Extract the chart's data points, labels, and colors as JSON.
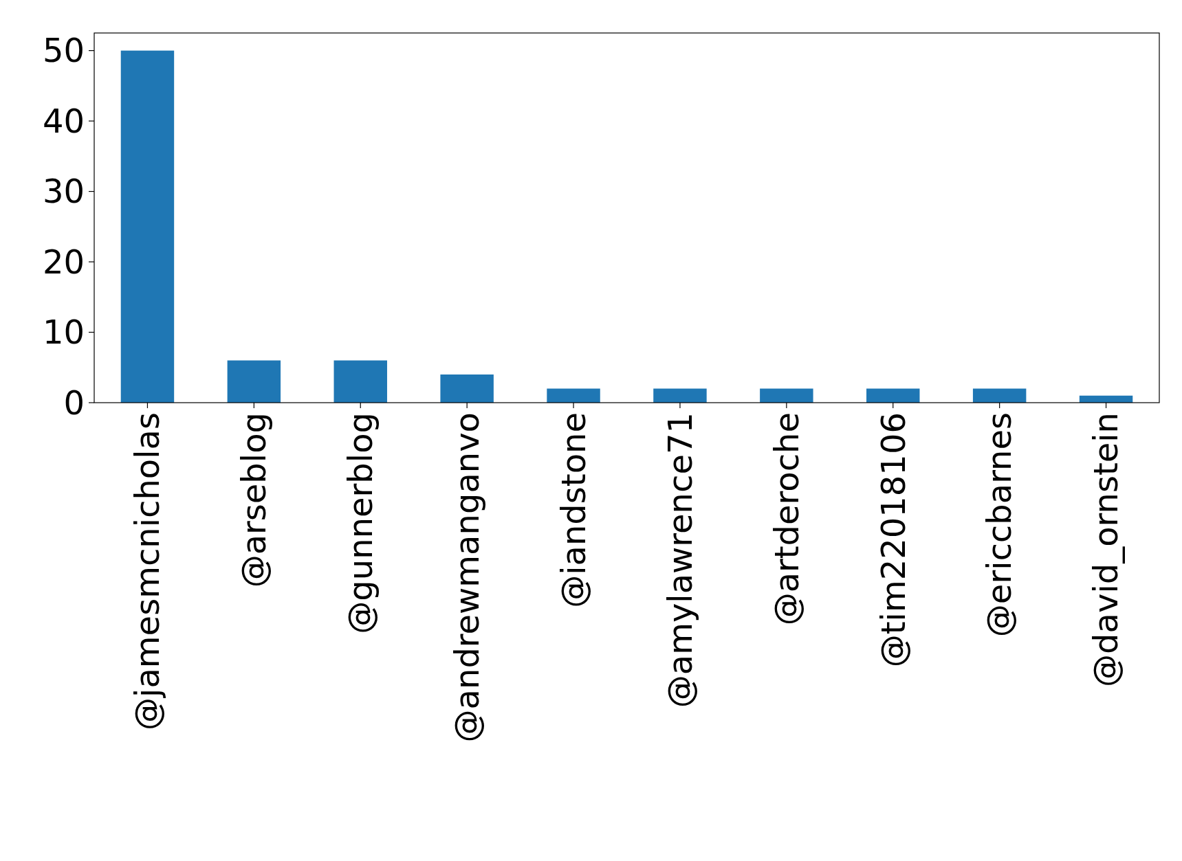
{
  "chart_data": {
    "type": "bar",
    "categories": [
      "@jamesmcnicholas",
      "@arseblog",
      "@gunnerblog",
      "@andrewmanganvo",
      "@iandstone",
      "@amylawrence71",
      "@artderoche",
      "@tim22018106",
      "@ericcbarnes",
      "@david_ornstein"
    ],
    "values": [
      50,
      6,
      6,
      4,
      2,
      2,
      2,
      2,
      2,
      1
    ],
    "color": "#1f77b4",
    "ylim": [
      0,
      52.5
    ],
    "yticks": [
      0,
      10,
      20,
      30,
      40,
      50
    ]
  }
}
